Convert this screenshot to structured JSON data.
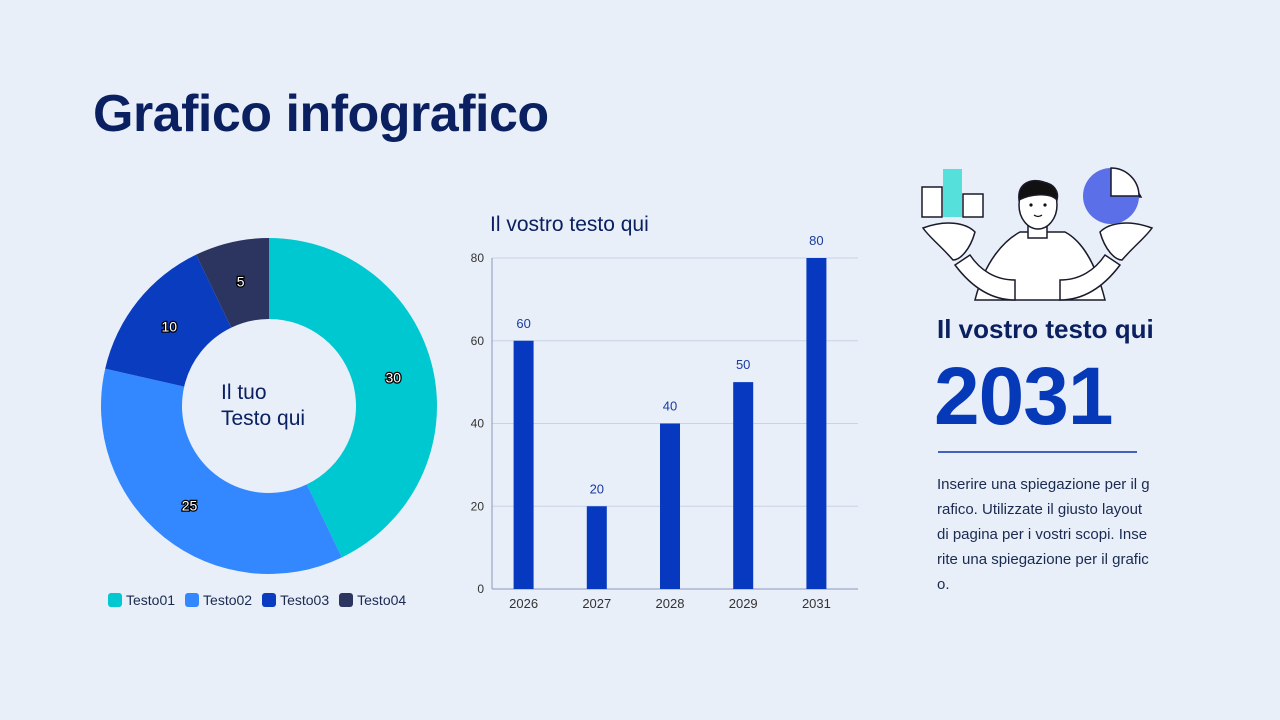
{
  "title": "Grafico infografico",
  "colors": {
    "background": "#e8eff9",
    "title": "#0b2060",
    "accent": "#0639b8"
  },
  "chart_data": [
    {
      "type": "pie",
      "variant": "donut",
      "center_text": [
        "Il tuo",
        "Testo qui"
      ],
      "categories": [
        "Testo01",
        "Testo02",
        "Testo03",
        "Testo04"
      ],
      "values": [
        30,
        25,
        10,
        5
      ],
      "colors": [
        "#00c8d0",
        "#3388ff",
        "#0a3cc0",
        "#2c3560"
      ],
      "legend": "bottom"
    },
    {
      "type": "bar",
      "title": "Il vostro testo qui",
      "categories": [
        "2026",
        "2027",
        "2028",
        "2029",
        "2031"
      ],
      "values": [
        60,
        20,
        40,
        50,
        80
      ],
      "yticks": [
        "0",
        "20",
        "40",
        "60",
        "80"
      ],
      "ylim": [
        0,
        80
      ],
      "grid": true,
      "color": "#0639c0"
    }
  ],
  "side": {
    "heading": "Il vostro testo qui",
    "year": "2031",
    "description": [
      "Inserire una spiegazione per il g",
      "rafico. Utilizzate il giusto layout",
      "di pagina per i vostri scopi. Inse",
      "rite una spiegazione per il grafic",
      "o."
    ]
  }
}
